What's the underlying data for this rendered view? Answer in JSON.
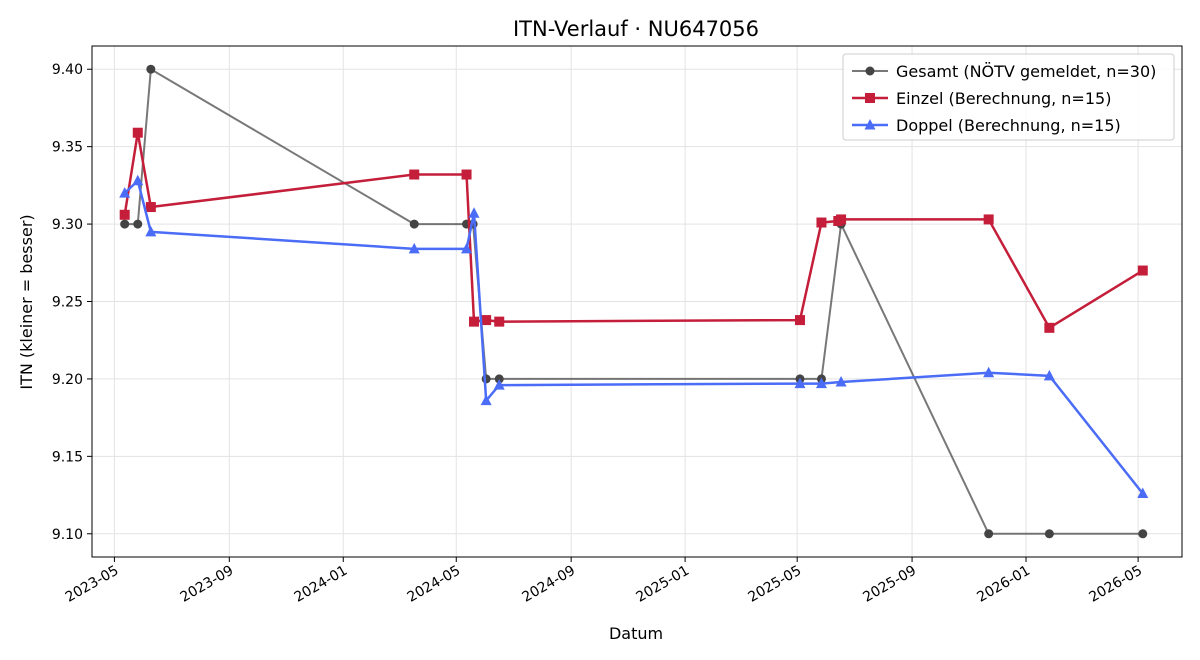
{
  "chart_data": {
    "type": "line",
    "title": "ITN-Verlauf · NU647056",
    "xlabel": "Datum",
    "ylabel": "ITN  (kleiner = besser)",
    "xlim": [
      "2023-04-07",
      "2026-06-17"
    ],
    "ylim": [
      9.085,
      9.415
    ],
    "grid": true,
    "legend_position": "top-right",
    "x_ticks": [
      "2023-05",
      "2023-09",
      "2024-01",
      "2024-05",
      "2024-09",
      "2025-01",
      "2025-05",
      "2025-09",
      "2026-01",
      "2026-05"
    ],
    "y_ticks": [
      "9.10",
      "9.15",
      "9.20",
      "9.25",
      "9.30",
      "9.35",
      "9.40"
    ],
    "series": [
      {
        "name": "Gesamt (NÖTV gemeldet, n=30)",
        "color": "#444444",
        "marker": "circle",
        "points": [
          [
            "2023-05-12",
            9.3
          ],
          [
            "2023-05-26",
            9.3
          ],
          [
            "2023-06-09",
            9.4
          ],
          [
            "2024-03-17",
            9.3
          ],
          [
            "2024-05-12",
            9.3
          ],
          [
            "2024-05-19",
            9.3
          ],
          [
            "2024-06-02",
            9.2
          ],
          [
            "2024-06-16",
            9.2
          ],
          [
            "2025-05-04",
            9.2
          ],
          [
            "2025-05-27",
            9.2
          ],
          [
            "2025-06-17",
            9.3
          ],
          [
            "2025-11-22",
            9.1
          ],
          [
            "2026-01-26",
            9.1
          ],
          [
            "2026-05-06",
            9.1
          ]
        ]
      },
      {
        "name": "Einzel (Berechnung, n=15)",
        "color": "#c41e3a",
        "marker": "square",
        "points": [
          [
            "2023-05-12",
            9.306
          ],
          [
            "2023-05-26",
            9.359
          ],
          [
            "2023-06-09",
            9.311
          ],
          [
            "2024-03-17",
            9.332
          ],
          [
            "2024-05-12",
            9.332
          ],
          [
            "2024-05-20",
            9.237
          ],
          [
            "2024-06-02",
            9.238
          ],
          [
            "2024-06-16",
            9.237
          ],
          [
            "2025-05-04",
            9.238
          ],
          [
            "2025-05-27",
            9.301
          ],
          [
            "2025-06-14",
            9.302
          ],
          [
            "2025-06-17",
            9.303
          ],
          [
            "2025-11-22",
            9.303
          ],
          [
            "2026-01-26",
            9.233
          ],
          [
            "2026-05-06",
            9.27
          ]
        ]
      },
      {
        "name": "Doppel (Berechnung, n=15)",
        "color": "#4a6cf7",
        "marker": "triangle",
        "points": [
          [
            "2023-05-12",
            9.32
          ],
          [
            "2023-05-26",
            9.328
          ],
          [
            "2023-06-09",
            9.295
          ],
          [
            "2024-03-17",
            9.284
          ],
          [
            "2024-05-12",
            9.284
          ],
          [
            "2024-05-20",
            9.307
          ],
          [
            "2024-06-02",
            9.186
          ],
          [
            "2024-06-16",
            9.196
          ],
          [
            "2025-05-04",
            9.197
          ],
          [
            "2025-05-27",
            9.197
          ],
          [
            "2025-06-17",
            9.198
          ],
          [
            "2025-11-22",
            9.204
          ],
          [
            "2026-01-26",
            9.202
          ],
          [
            "2026-05-06",
            9.126
          ]
        ]
      }
    ]
  }
}
